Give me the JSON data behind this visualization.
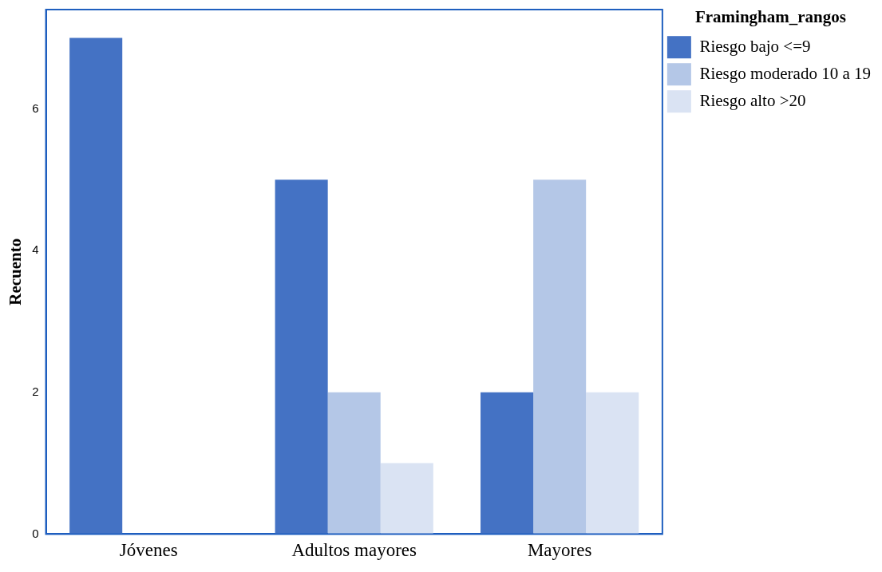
{
  "chart_data": {
    "type": "bar",
    "ylabel": "Recuento",
    "legend_title": "Framingham_rangos",
    "categories": [
      "Jóvenes",
      "Adultos mayores",
      "Mayores"
    ],
    "series": [
      {
        "name": "Riesgo bajo <=9",
        "color": "#4472c4",
        "values": [
          7,
          5,
          2
        ]
      },
      {
        "name": "Riesgo moderado 10 a 19",
        "color": "#b4c7e7",
        "values": [
          0,
          2,
          5
        ]
      },
      {
        "name": "Riesgo alto >20",
        "color": "#dae3f3",
        "values": [
          0,
          1,
          2
        ]
      }
    ],
    "ylim": [
      0,
      7.4
    ],
    "yticks": [
      0,
      2,
      4,
      6
    ],
    "grid": false,
    "legend": "top right"
  }
}
